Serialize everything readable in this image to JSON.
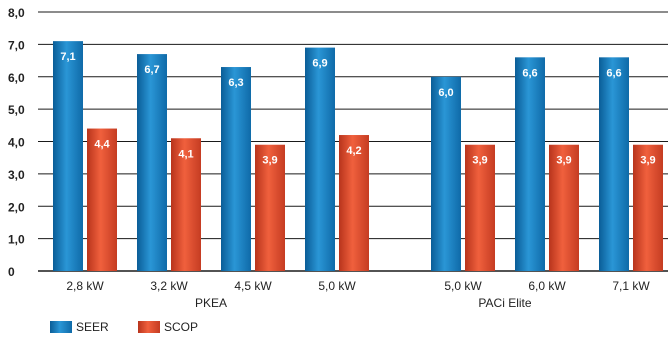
{
  "chart_data": {
    "type": "bar",
    "title": "",
    "xlabel": "",
    "ylabel": "",
    "ylim": [
      0,
      8
    ],
    "yticks": [
      "0",
      "1,0",
      "2,0",
      "3,0",
      "4,0",
      "5,0",
      "6,0",
      "7,0",
      "8,0"
    ],
    "grid": true,
    "legend_position": "bottom-left",
    "groups": [
      {
        "label": "PKEA",
        "categories": [
          "2,8 kW",
          "3,2 kW",
          "4,5 kW",
          "5,0 kW"
        ]
      },
      {
        "label": "PACi Elite",
        "categories": [
          "5,0 kW",
          "6,0 kW",
          "7,1 kW"
        ]
      }
    ],
    "categories": [
      "2,8 kW",
      "3,2 kW",
      "4,5 kW",
      "5,0 kW",
      "5,0 kW",
      "6,0 kW",
      "7,1 kW"
    ],
    "series": [
      {
        "name": "SEER",
        "color": "#1a7fc1",
        "values": [
          7.1,
          6.7,
          6.3,
          6.9,
          6.0,
          6.6,
          6.6
        ],
        "labels": [
          "7,1",
          "6,7",
          "6,3",
          "6,9",
          "6,0",
          "6,6",
          "6,6"
        ]
      },
      {
        "name": "SCOP",
        "color": "#e04a2b",
        "values": [
          4.4,
          4.1,
          3.9,
          4.2,
          3.9,
          3.9,
          3.9
        ],
        "labels": [
          "4,4",
          "4,1",
          "3,9",
          "4,2",
          "3,9",
          "3,9",
          "3,9"
        ]
      }
    ]
  }
}
